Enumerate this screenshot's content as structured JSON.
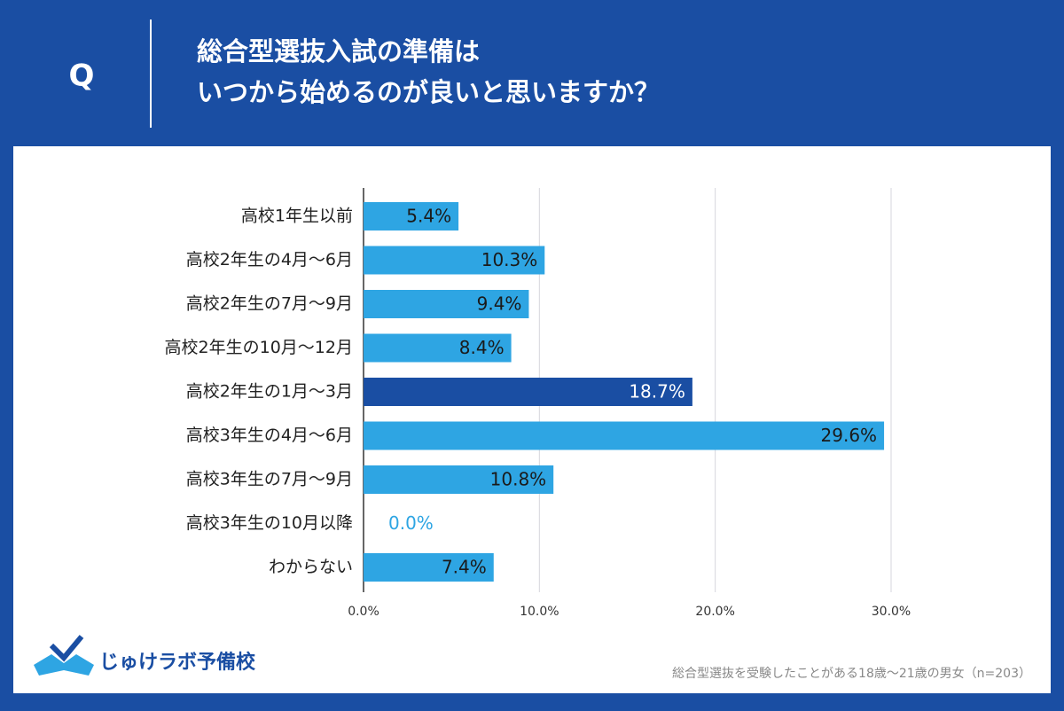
{
  "header": {
    "q": "Q",
    "title_lines": [
      "総合型選抜入試の準備は",
      "いつから始めるのが良いと思いますか？"
    ]
  },
  "chart_data": {
    "type": "bar",
    "orientation": "horizontal",
    "categories": [
      "高校1年生以前",
      "高校2年生の4月～6月",
      "高校2年生の7月～9月",
      "高校2年生の10月～12月",
      "高校2年生の1月～3月",
      "高校3年生の4月～6月",
      "高校3年生の7月～9月",
      "高校3年生の10月以降",
      "わからない"
    ],
    "values": [
      5.4,
      10.3,
      9.4,
      8.4,
      18.7,
      29.6,
      10.8,
      0.0,
      7.4
    ],
    "value_labels": [
      "5.4%",
      "10.3%",
      "9.4%",
      "8.4%",
      "18.7%",
      "29.6%",
      "10.8%",
      "0.0%",
      "7.4%"
    ],
    "colors": [
      "#2ea5e3",
      "#2ea5e3",
      "#2ea5e3",
      "#2ea5e3",
      "#1a4ea3",
      "#2ea5e3",
      "#2ea5e3",
      "#2ea5e3",
      "#2ea5e3"
    ],
    "xlim": [
      0,
      30
    ],
    "xticks": [
      {
        "value": 0,
        "label": "0.0%"
      },
      {
        "value": 10,
        "label": "10.0%"
      },
      {
        "value": 20,
        "label": "20.0%"
      },
      {
        "value": 30,
        "label": "30.0%"
      }
    ],
    "grid": true
  },
  "footer": {
    "logo": "じゅけラボ予備校",
    "note": "総合型選抜を受験したことがある18歳～21歳の男女（n=203）"
  }
}
